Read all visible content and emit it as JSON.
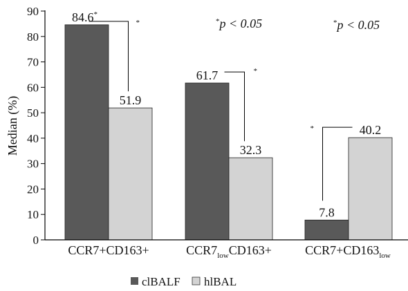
{
  "chart_data": {
    "type": "bar",
    "ylabel": "Median (%)",
    "ylim": [
      0,
      90
    ],
    "ytick_step": 10,
    "grid": false,
    "legend_position": "bottom",
    "categories": [
      {
        "main": "CCR7+CD163+",
        "sub": ""
      },
      {
        "main": "CCR7",
        "sub": "low",
        "rest": "CD163+"
      },
      {
        "main": "CCR7+CD163",
        "sub": "low",
        "rest": ""
      }
    ],
    "series": [
      {
        "name": "clBALF",
        "color": "#595959",
        "values": [
          84.6,
          61.7,
          7.8
        ],
        "labels": [
          "84.6",
          "61.7",
          "7.8"
        ],
        "label_stars": [
          "*",
          "",
          ""
        ]
      },
      {
        "name": "hlBAL",
        "color": "#d3d3d3",
        "values": [
          51.9,
          32.3,
          40.2
        ],
        "labels": [
          "51.9",
          "32.3",
          "40.2"
        ],
        "label_stars": [
          "",
          "",
          ""
        ]
      }
    ],
    "significance_marker": "*",
    "annotations": [
      {
        "star": "*",
        "text": "p < 0.05"
      },
      {
        "star": "*",
        "text": "p < 0.05"
      }
    ]
  }
}
